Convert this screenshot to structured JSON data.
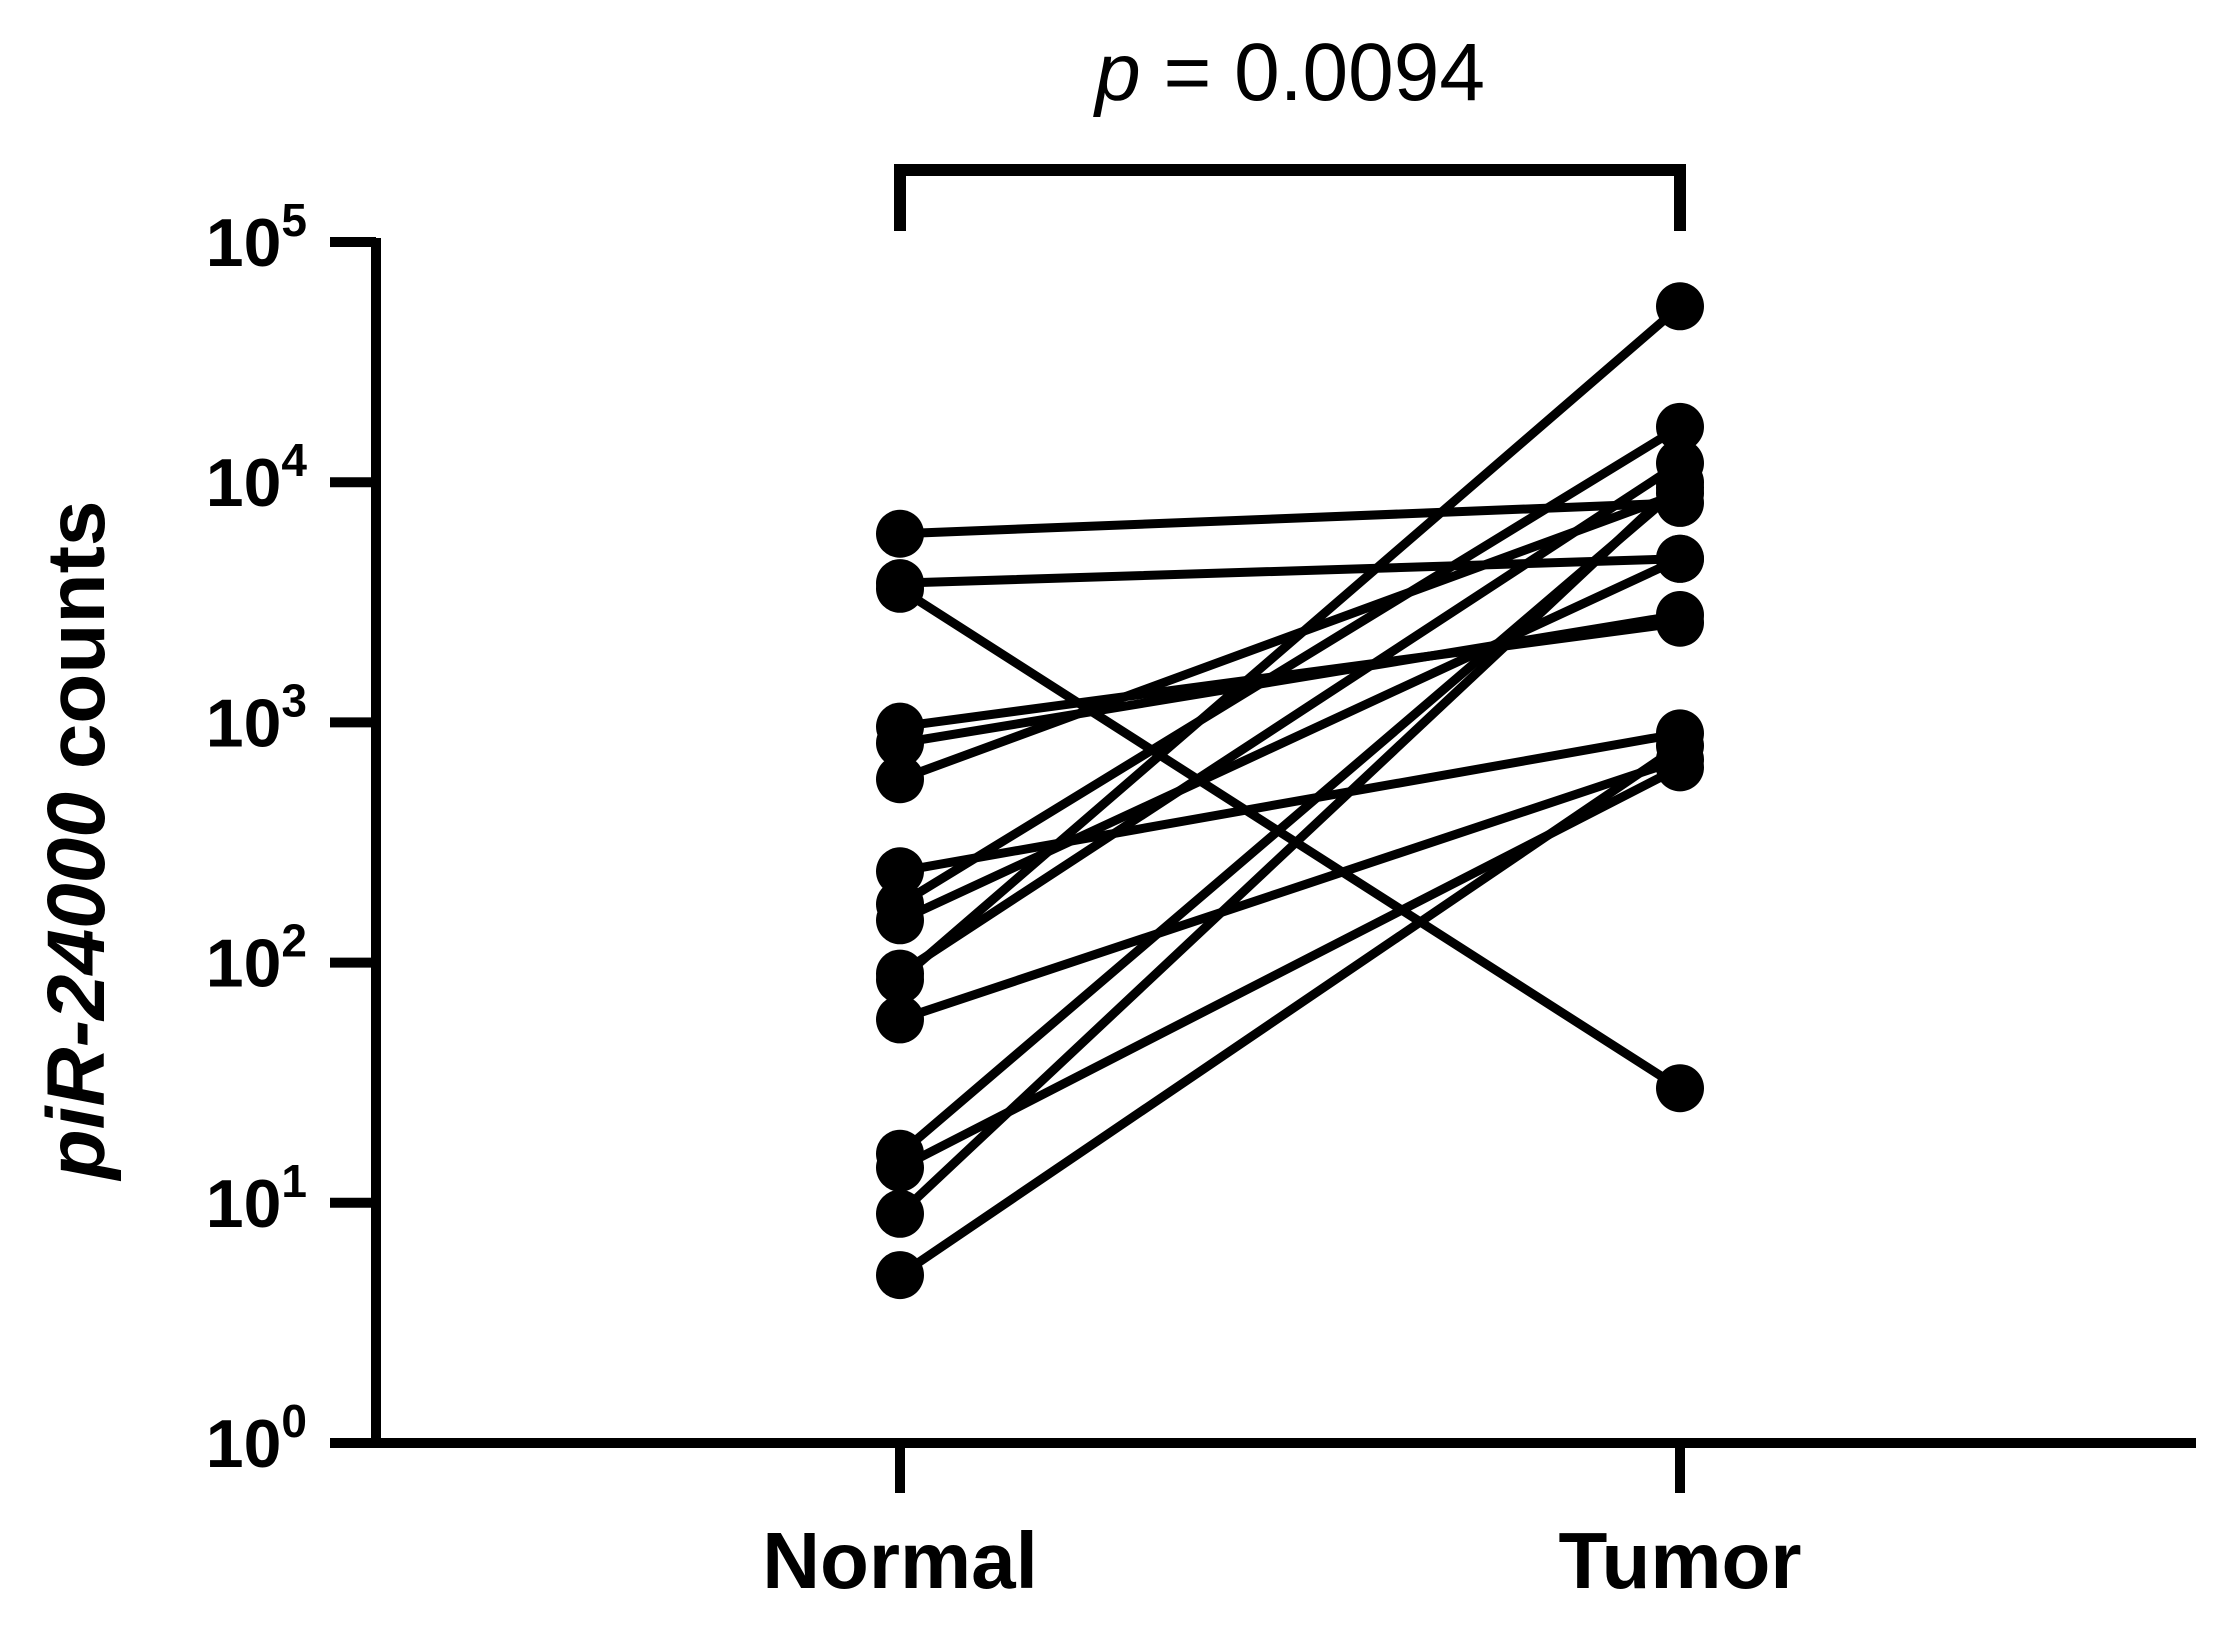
{
  "chart_data": {
    "type": "line",
    "subtype": "paired-dot",
    "categories": [
      "Normal",
      "Tumor"
    ],
    "ylabel_italic": "piR-24000",
    "ylabel_rest": " counts",
    "yscale": "log",
    "ylim": [
      1,
      100000
    ],
    "yticks": [
      {
        "base": "10",
        "exp": "0",
        "value": 1
      },
      {
        "base": "10",
        "exp": "1",
        "value": 10
      },
      {
        "base": "10",
        "exp": "2",
        "value": 100
      },
      {
        "base": "10",
        "exp": "3",
        "value": 1000
      },
      {
        "base": "10",
        "exp": "4",
        "value": 10000
      },
      {
        "base": "10",
        "exp": "5",
        "value": 100000
      }
    ],
    "pairs": [
      [
        6100,
        8200
      ],
      [
        3800,
        4800
      ],
      [
        3600,
        30
      ],
      [
        960,
        2600
      ],
      [
        820,
        2800
      ],
      [
        580,
        9000
      ],
      [
        240,
        900
      ],
      [
        175,
        17000
      ],
      [
        150,
        4800
      ],
      [
        90,
        12000
      ],
      [
        85,
        54000
      ],
      [
        58,
        700
      ],
      [
        16,
        9500
      ],
      [
        14,
        650
      ],
      [
        9,
        10000
      ],
      [
        5,
        800
      ]
    ],
    "annotation": {
      "p_symbol": "p",
      "p_rest": " = 0.0094"
    },
    "grid": false,
    "legend": "none",
    "color": "#000000"
  }
}
